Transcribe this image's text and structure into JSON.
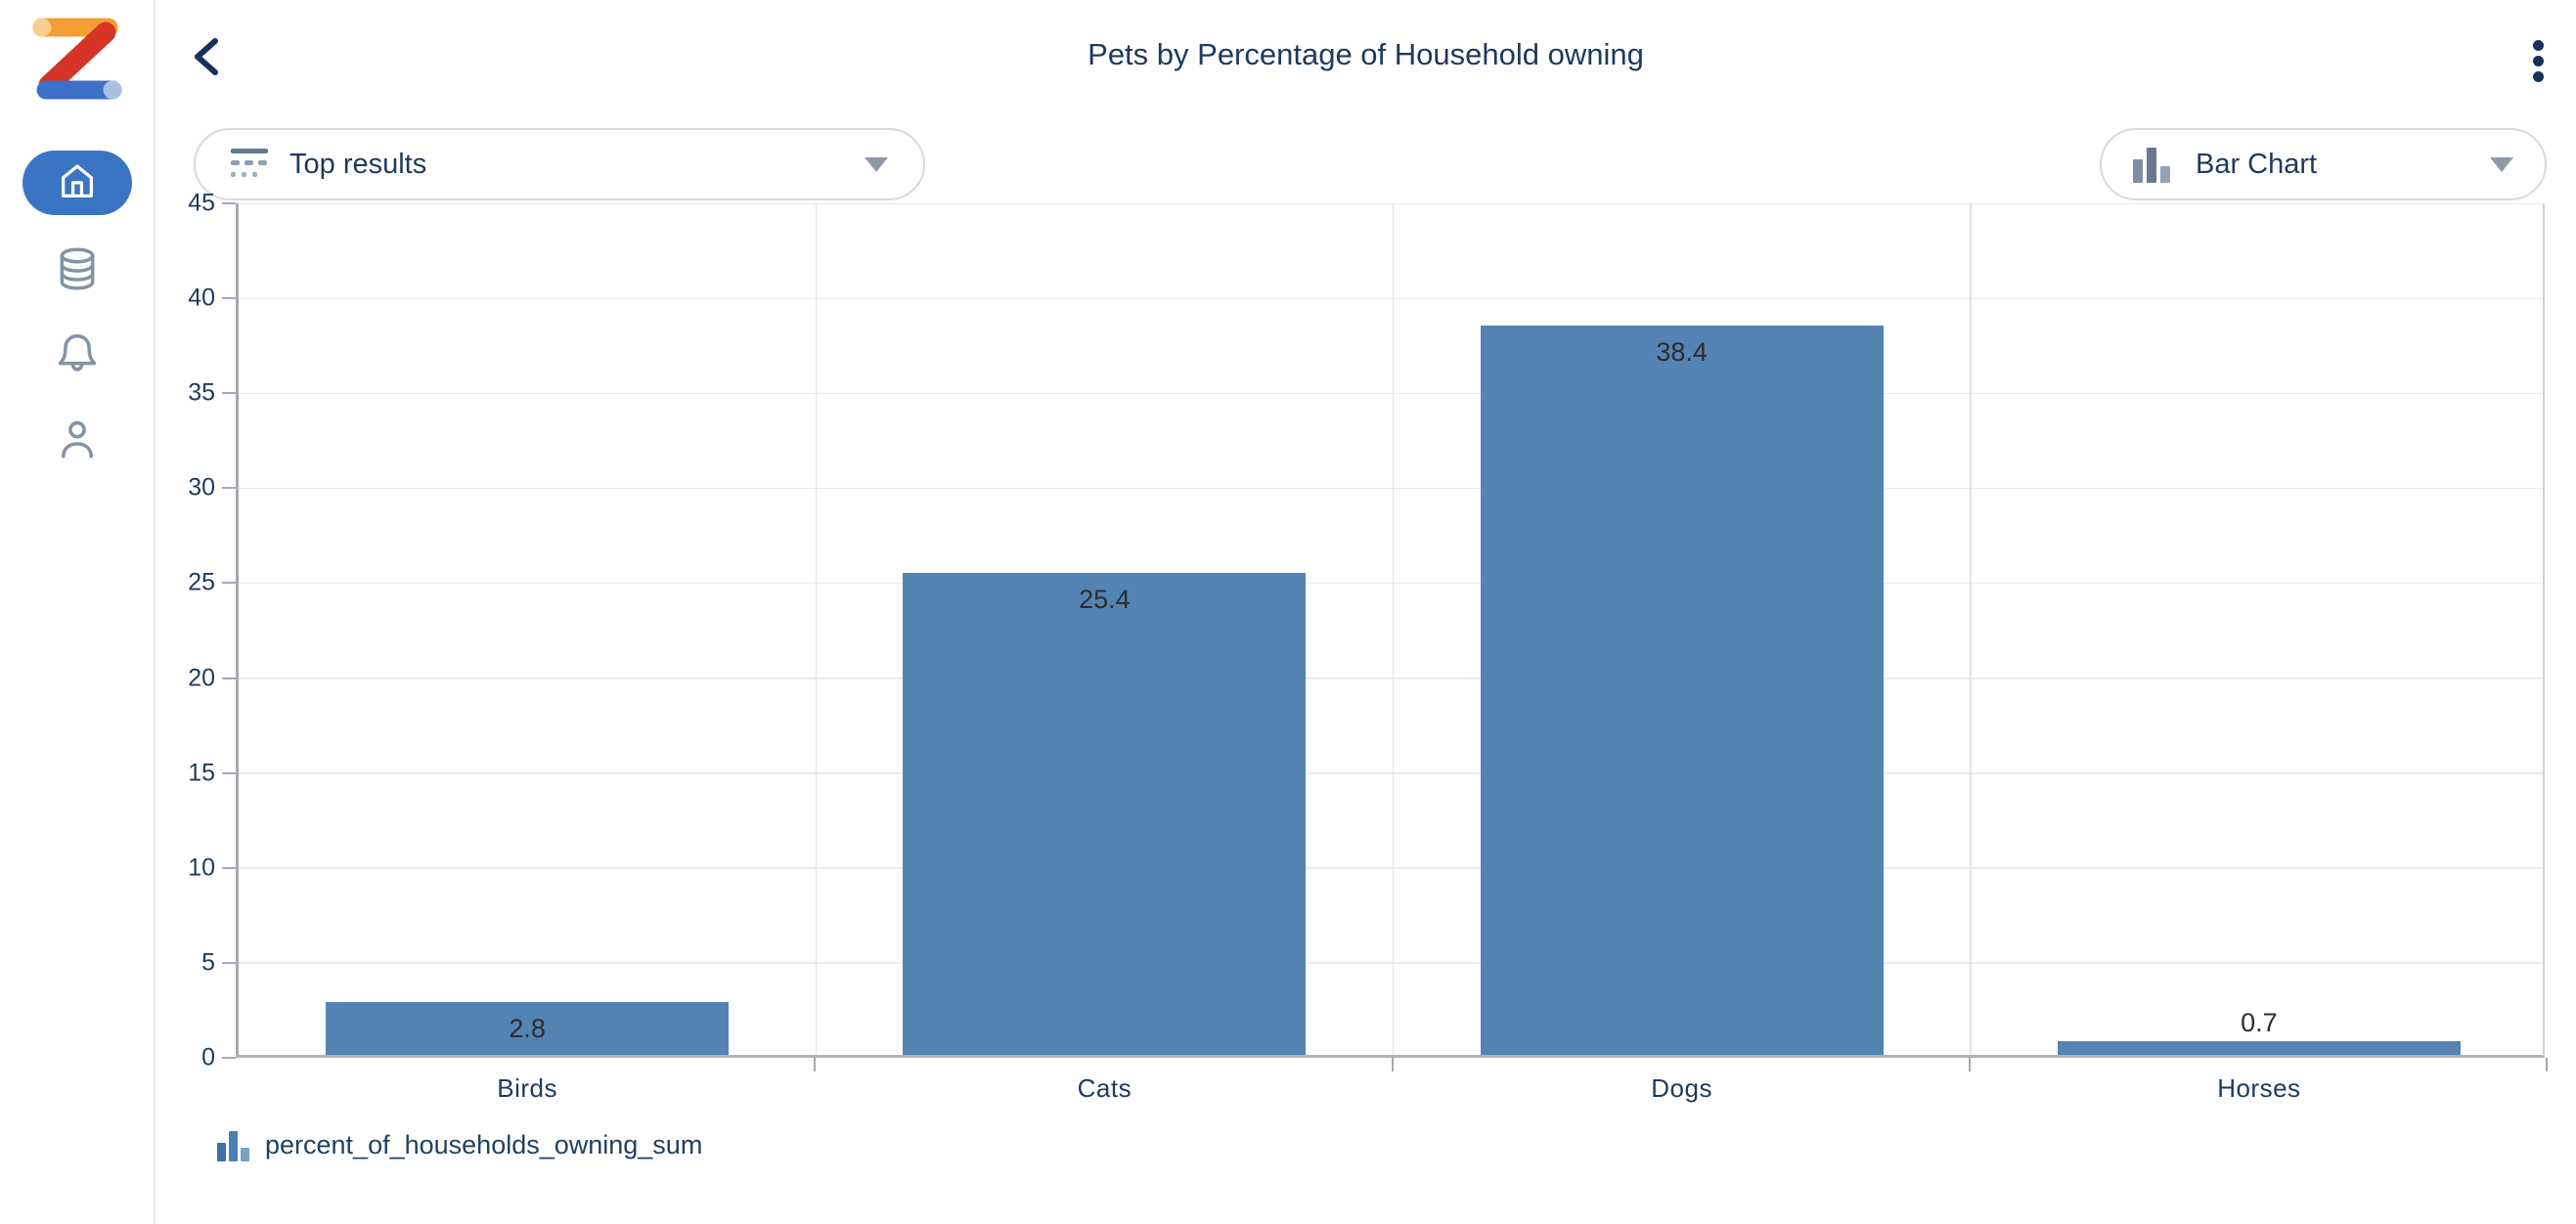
{
  "header": {
    "title": "Pets by Percentage of Household owning"
  },
  "sidebar": {
    "items": [
      {
        "id": "home",
        "icon": "home-icon",
        "active": true
      },
      {
        "id": "data-sources",
        "icon": "database-icon",
        "active": false
      },
      {
        "id": "notifications",
        "icon": "bell-icon",
        "active": false
      },
      {
        "id": "profile",
        "icon": "person-icon",
        "active": false
      }
    ]
  },
  "controls": {
    "top_results": {
      "label": "Top results",
      "icon": "top-results-icon",
      "caret": "chevron-down-icon"
    },
    "chart_type": {
      "label": "Bar Chart",
      "icon": "bar-chart-icon",
      "caret": "chevron-down-icon"
    }
  },
  "chart_data": {
    "type": "bar",
    "categories": [
      "Birds",
      "Cats",
      "Dogs",
      "Horses"
    ],
    "values": [
      2.8,
      25.4,
      38.4,
      0.7
    ],
    "value_labels": [
      "2.8",
      "25.4",
      "38.4",
      "0.7"
    ],
    "series": [
      {
        "name": "percent_of_households_owning_sum",
        "values": [
          2.8,
          25.4,
          38.4,
          0.7
        ]
      }
    ],
    "title": "Pets by Percentage of Household owning",
    "xlabel": "",
    "ylabel": "",
    "ylim": [
      0,
      45
    ],
    "ytick_step": 5,
    "yticks": [
      0,
      5,
      10,
      15,
      20,
      25,
      30,
      35,
      40,
      45
    ],
    "grid": true,
    "legend_position": "bottom",
    "bar_color": "#5484b4"
  },
  "legend": {
    "label": "percent_of_households_owning_sum"
  },
  "colors": {
    "accent_blue": "#3a75c4",
    "bar_blue": "#5484b4",
    "navy_text": "#1e3a5c",
    "icon_gray": "#8593a5"
  }
}
